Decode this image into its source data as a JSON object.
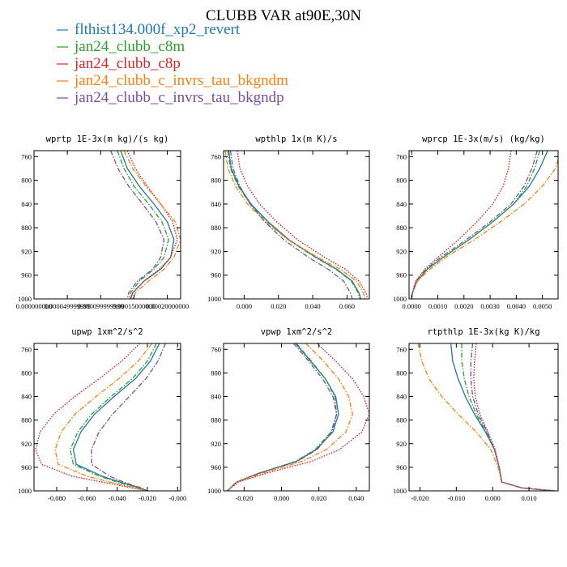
{
  "figure": {
    "title": "CLUBB VAR at90E,30N"
  },
  "legend": [
    {
      "name": "flthist134.000f_xp2_revert",
      "color": "#1f77b4",
      "dash": "solid"
    },
    {
      "name": "jan24_clubb_c8m",
      "color": "#2ca02c",
      "dash": "dashdot"
    },
    {
      "name": "jan24_clubb_c8p",
      "color": "#d62728",
      "dash": "dotted"
    },
    {
      "name": "jan24_clubb_c_invrs_tau_bkgndm",
      "color": "#ff7f0e",
      "dash": "dashdot"
    },
    {
      "name": "jan24_clubb_c_invrs_tau_bkgndp",
      "color": "#7b4ea3",
      "dash": "dashdot"
    }
  ],
  "chart_data": [
    {
      "type": "line",
      "title": "wprtp  1E-3x(m kg)/(s kg)",
      "xlim": [
        0.0,
        0.00022
      ],
      "ylim": [
        1000,
        750
      ],
      "xticks": [
        0.0,
        5e-05,
        0.0001,
        0.00015,
        0.0002
      ],
      "xtick_labels": [
        "0.000000000",
        "0.000049999999",
        "0.000099999999",
        "0.00015000000",
        "0.00020000000"
      ],
      "yticks": [
        760,
        800,
        840,
        880,
        920,
        960,
        1000
      ],
      "y": [
        750,
        780,
        810,
        840,
        870,
        900,
        930,
        950,
        970,
        990,
        1000
      ],
      "series": [
        {
          "name": "flthist134.000f_xp2_revert",
          "values": [
            0.00013,
            0.00014,
            0.000158,
            0.00018,
            0.0002,
            0.00021,
            0.000205,
            0.00019,
            0.000165,
            0.000148,
            0.000145
          ]
        },
        {
          "name": "jan24_clubb_c8m",
          "values": [
            0.000125,
            0.000135,
            0.00015,
            0.000172,
            0.000192,
            0.000202,
            0.000195,
            0.00018,
            0.000158,
            0.000145,
            0.000142
          ]
        },
        {
          "name": "jan24_clubb_c8p",
          "values": [
            0.00014,
            0.000152,
            0.00017,
            0.00019,
            0.000208,
            0.000215,
            0.000205,
            0.000188,
            0.000165,
            0.000148,
            0.000144
          ]
        },
        {
          "name": "jan24_clubb_c_invrs_tau_bkgndm",
          "values": [
            0.000135,
            0.000148,
            0.000168,
            0.00019,
            0.000212,
            0.00022,
            0.00021,
            0.000195,
            0.000172,
            0.000152,
            0.000148
          ]
        },
        {
          "name": "jan24_clubb_c_invrs_tau_bkgndp",
          "values": [
            0.000115,
            0.000126,
            0.000142,
            0.000163,
            0.000183,
            0.000195,
            0.00019,
            0.000178,
            0.000155,
            0.000142,
            0.00014
          ]
        }
      ]
    },
    {
      "type": "line",
      "title": "wpthlp  1x(m K)/s",
      "xlim": [
        -0.012,
        0.073
      ],
      "ylim": [
        1000,
        750
      ],
      "xticks": [
        0.0,
        0.02,
        0.04,
        0.06
      ],
      "xtick_labels": [
        "0.000",
        "0.020",
        "0.040",
        "0.060"
      ],
      "yticks": [
        760,
        800,
        840,
        880,
        920,
        960,
        1000
      ],
      "y": [
        750,
        780,
        810,
        840,
        870,
        900,
        930,
        950,
        970,
        990,
        1000
      ],
      "series": [
        {
          "name": "flthist134.000f_xp2_revert",
          "values": [
            -0.009,
            -0.0075,
            -0.003,
            0.004,
            0.014,
            0.026,
            0.042,
            0.054,
            0.063,
            0.067,
            0.068
          ]
        },
        {
          "name": "jan24_clubb_c8m",
          "values": [
            -0.0095,
            -0.008,
            -0.0035,
            0.0035,
            0.0135,
            0.0255,
            0.0415,
            0.0535,
            0.0625,
            0.0665,
            0.0675
          ]
        },
        {
          "name": "jan24_clubb_c8p",
          "values": [
            -0.004,
            -0.0025,
            0.002,
            0.009,
            0.019,
            0.031,
            0.047,
            0.059,
            0.067,
            0.071,
            0.072
          ]
        },
        {
          "name": "jan24_clubb_c_invrs_tau_bkgndm",
          "values": [
            -0.011,
            -0.0095,
            -0.005,
            0.002,
            0.0125,
            0.0255,
            0.043,
            0.056,
            0.0655,
            0.0695,
            0.0705
          ]
        },
        {
          "name": "jan24_clubb_c_invrs_tau_bkgndp",
          "values": [
            -0.008,
            -0.0065,
            -0.0025,
            0.0035,
            0.012,
            0.023,
            0.0375,
            0.049,
            0.058,
            0.062,
            0.063
          ]
        }
      ]
    },
    {
      "type": "line",
      "title": "wprcp  1E-3x(m/s) (kg/kg)",
      "xlim": [
        -0.0001,
        0.0056
      ],
      "ylim": [
        1000,
        750
      ],
      "xticks": [
        0.0,
        0.001,
        0.002,
        0.003,
        0.004,
        0.005
      ],
      "xtick_labels": [
        "0.0000",
        "0.0010",
        "0.0020",
        "0.0030",
        "0.0040",
        "0.0050"
      ],
      "yticks": [
        760,
        800,
        840,
        880,
        920,
        960,
        1000
      ],
      "y": [
        750,
        780,
        810,
        840,
        870,
        900,
        930,
        950,
        970,
        990,
        1000
      ],
      "series": [
        {
          "name": "flthist134.000f_xp2_revert",
          "values": [
            0.0052,
            0.0049,
            0.0045,
            0.0039,
            0.0031,
            0.0022,
            0.0012,
            0.0006,
            0.0002,
            3e-05,
            0.0
          ]
        },
        {
          "name": "jan24_clubb_c8m",
          "values": [
            0.0049,
            0.0047,
            0.0044,
            0.0039,
            0.0031,
            0.0022,
            0.0012,
            0.0006,
            0.0002,
            3e-05,
            0.0
          ]
        },
        {
          "name": "jan24_clubb_c8p",
          "values": [
            0.0038,
            0.0037,
            0.0035,
            0.0031,
            0.0025,
            0.0018,
            0.001,
            0.0005,
            0.00015,
            2e-05,
            0.0
          ]
        },
        {
          "name": "jan24_clubb_c_invrs_tau_bkgndm",
          "values": [
            0.0057,
            0.0055,
            0.005,
            0.0043,
            0.0034,
            0.0024,
            0.0013,
            0.0007,
            0.00022,
            3e-05,
            0.0
          ]
        },
        {
          "name": "jan24_clubb_c_invrs_tau_bkgndp",
          "values": [
            0.0048,
            0.0046,
            0.0043,
            0.0038,
            0.003,
            0.0021,
            0.0011,
            0.00055,
            0.00018,
            2e-05,
            0.0
          ]
        }
      ]
    },
    {
      "type": "line",
      "title": "upwp  1xm^2/s^2",
      "xlim": [
        -0.095,
        0.002
      ],
      "ylim": [
        1000,
        750
      ],
      "xticks": [
        -0.08,
        -0.06,
        -0.04,
        -0.02,
        0.0
      ],
      "xtick_labels": [
        "-0.080",
        "-0.060",
        "-0.040",
        "-0.020",
        "-0.000"
      ],
      "yticks": [
        760,
        800,
        840,
        880,
        920,
        960,
        1000
      ],
      "y": [
        750,
        780,
        810,
        840,
        870,
        900,
        930,
        955,
        975,
        985,
        995,
        1000
      ],
      "series": [
        {
          "name": "flthist134.000f_xp2_revert",
          "values": [
            -0.012,
            -0.018,
            -0.028,
            -0.042,
            -0.055,
            -0.064,
            -0.069,
            -0.067,
            -0.05,
            -0.038,
            -0.025,
            -0.02
          ]
        },
        {
          "name": "jan24_clubb_c8m",
          "values": [
            -0.014,
            -0.02,
            -0.03,
            -0.044,
            -0.057,
            -0.066,
            -0.071,
            -0.069,
            -0.052,
            -0.04,
            -0.026,
            -0.02
          ]
        },
        {
          "name": "jan24_clubb_c8p",
          "values": [
            -0.025,
            -0.037,
            -0.052,
            -0.068,
            -0.082,
            -0.091,
            -0.094,
            -0.09,
            -0.07,
            -0.05,
            -0.03,
            -0.02
          ]
        },
        {
          "name": "jan24_clubb_c_invrs_tau_bkgndm",
          "values": [
            -0.017,
            -0.026,
            -0.039,
            -0.054,
            -0.068,
            -0.077,
            -0.081,
            -0.079,
            -0.06,
            -0.045,
            -0.028,
            -0.02
          ]
        },
        {
          "name": "jan24_clubb_c_invrs_tau_bkgndp",
          "values": [
            -0.008,
            -0.013,
            -0.021,
            -0.032,
            -0.043,
            -0.052,
            -0.057,
            -0.057,
            -0.045,
            -0.036,
            -0.024,
            -0.02
          ]
        }
      ]
    },
    {
      "type": "line",
      "title": "vpwp  1xm^2/s^2",
      "xlim": [
        -0.031,
        0.047
      ],
      "ylim": [
        1000,
        750
      ],
      "xticks": [
        -0.02,
        0.0,
        0.02,
        0.04
      ],
      "xtick_labels": [
        "-0.020",
        "0.000",
        "0.020",
        "0.040"
      ],
      "yticks": [
        760,
        800,
        840,
        880,
        920,
        960,
        1000
      ],
      "y": [
        750,
        780,
        810,
        840,
        870,
        900,
        930,
        950,
        970,
        985,
        1000
      ],
      "series": [
        {
          "name": "flthist134.000f_xp2_revert",
          "values": [
            0.0075,
            0.0155,
            0.0235,
            0.029,
            0.0305,
            0.0275,
            0.0185,
            0.008,
            -0.012,
            -0.024,
            -0.029
          ]
        },
        {
          "name": "jan24_clubb_c8m",
          "values": [
            0.008,
            0.016,
            0.0235,
            0.0285,
            0.0295,
            0.0265,
            0.018,
            0.0075,
            -0.012,
            -0.024,
            -0.029
          ]
        },
        {
          "name": "jan24_clubb_c8p",
          "values": [
            0.019,
            0.029,
            0.038,
            0.044,
            0.047,
            0.043,
            0.031,
            0.016,
            -0.008,
            -0.023,
            -0.029
          ]
        },
        {
          "name": "jan24_clubb_c_invrs_tau_bkgndm",
          "values": [
            0.013,
            0.0225,
            0.0305,
            0.036,
            0.038,
            0.0345,
            0.024,
            0.011,
            -0.01,
            -0.024,
            -0.029
          ]
        },
        {
          "name": "jan24_clubb_c_invrs_tau_bkgndp",
          "values": [
            0.0065,
            0.0145,
            0.022,
            0.0275,
            0.0295,
            0.027,
            0.019,
            0.0085,
            -0.012,
            -0.024,
            -0.029
          ]
        }
      ]
    },
    {
      "type": "line",
      "title": "rtpthlp  1E-3x(kg K)/kg",
      "xlim": [
        -0.023,
        0.018
      ],
      "ylim": [
        1000,
        750
      ],
      "xticks": [
        -0.02,
        -0.01,
        0.0,
        0.01
      ],
      "xtick_labels": [
        "-0.020",
        "-0.010",
        "0.000",
        "0.010"
      ],
      "yticks": [
        760,
        800,
        840,
        880,
        920,
        960,
        1000
      ],
      "y": [
        750,
        780,
        810,
        840,
        870,
        900,
        930,
        960,
        985,
        995,
        1000
      ],
      "series": [
        {
          "name": "flthist134.000f_xp2_revert",
          "values": [
            -0.0115,
            -0.011,
            -0.0095,
            -0.0075,
            -0.005,
            -0.002,
            0.0005,
            0.0018,
            0.0025,
            0.008,
            0.017
          ]
        },
        {
          "name": "jan24_clubb_c8m",
          "values": [
            -0.0085,
            -0.0085,
            -0.0078,
            -0.0065,
            -0.0045,
            -0.0018,
            0.0005,
            0.0018,
            0.0025,
            0.008,
            0.017
          ]
        },
        {
          "name": "jan24_clubb_c8p",
          "values": [
            -0.0045,
            -0.005,
            -0.0052,
            -0.0048,
            -0.0035,
            -0.0013,
            0.0007,
            0.0018,
            0.0025,
            0.008,
            0.017
          ]
        },
        {
          "name": "jan24_clubb_c_invrs_tau_bkgndm",
          "values": [
            -0.0205,
            -0.0195,
            -0.0175,
            -0.014,
            -0.0095,
            -0.0045,
            -0.0005,
            0.0015,
            0.0025,
            0.008,
            0.017
          ]
        },
        {
          "name": "jan24_clubb_c_invrs_tau_bkgndp",
          "values": [
            -0.0055,
            -0.006,
            -0.006,
            -0.0055,
            -0.004,
            -0.0015,
            0.0005,
            0.0018,
            0.0025,
            0.008,
            0.017
          ]
        }
      ]
    }
  ]
}
